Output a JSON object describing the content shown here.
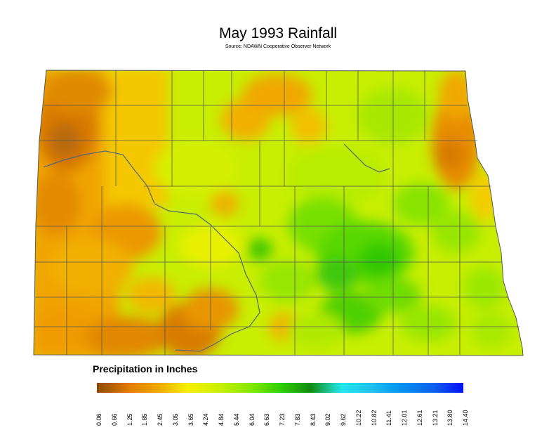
{
  "title": "May 1993 Rainfall",
  "subtitle": "Source: NDAWN Cooperative Observer Network",
  "legend": {
    "title": "Precipitation in Inches",
    "ticks": [
      "0.06",
      "0.66",
      "1.25",
      "1.85",
      "2.45",
      "3.05",
      "3.65",
      "4.24",
      "4.84",
      "5.44",
      "6.04",
      "6.63",
      "7.23",
      "7.83",
      "8.43",
      "9.02",
      "9.62",
      "10.22",
      "10.82",
      "11.41",
      "12.01",
      "12.61",
      "13.21",
      "13.80",
      "14.40"
    ],
    "colors": [
      "#8a4a00",
      "#e07800",
      "#f0a800",
      "#f8f000",
      "#c8f000",
      "#88e800",
      "#30d000",
      "#108a10",
      "#20e8e8",
      "#20c0f0",
      "#0090f0",
      "#1060f0",
      "#0010f8"
    ]
  },
  "colors": {
    "border": "#555555",
    "river": "#556677"
  }
}
